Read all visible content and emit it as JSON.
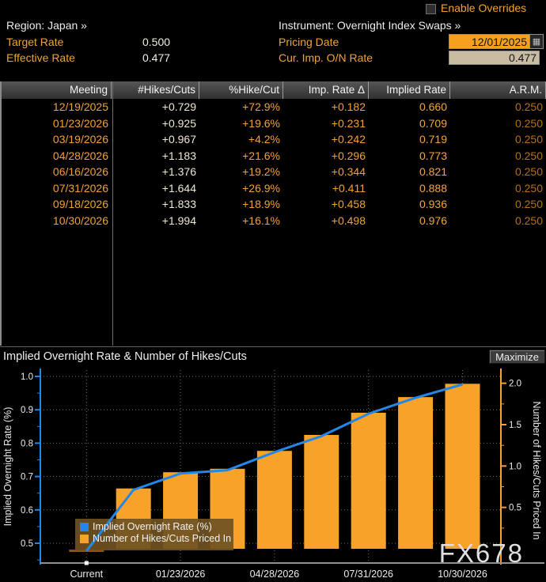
{
  "header": {
    "enable_overrides_label": "Enable Overrides",
    "region_label": "Region: Japan »",
    "instrument_label": "Instrument: Overnight Index Swaps »",
    "target_rate_label": "Target Rate",
    "target_rate_value": "0.500",
    "effective_rate_label": "Effective Rate",
    "effective_rate_value": "0.477",
    "pricing_date_label": "Pricing Date",
    "pricing_date_value": "12/01/2025",
    "calendar_icon": "▦",
    "cur_imp_on_rate_label": "Cur. Imp. O/N Rate",
    "cur_imp_on_rate_value": "0.477"
  },
  "table": {
    "columns": [
      "Meeting",
      "#Hikes/Cuts",
      "%Hike/Cut",
      "Imp. Rate Δ",
      "Implied Rate",
      "A.R.M."
    ],
    "rows": [
      [
        "12/19/2025",
        "+0.729",
        "+72.9%",
        "+0.182",
        "0.660",
        "0.250"
      ],
      [
        "01/23/2026",
        "+0.925",
        "+19.6%",
        "+0.231",
        "0.709",
        "0.250"
      ],
      [
        "03/19/2026",
        "+0.967",
        "+4.2%",
        "+0.242",
        "0.719",
        "0.250"
      ],
      [
        "04/28/2026",
        "+1.183",
        "+21.6%",
        "+0.296",
        "0.773",
        "0.250"
      ],
      [
        "06/16/2026",
        "+1.376",
        "+19.2%",
        "+0.344",
        "0.821",
        "0.250"
      ],
      [
        "07/31/2026",
        "+1.644",
        "+26.9%",
        "+0.411",
        "0.888",
        "0.250"
      ],
      [
        "09/18/2026",
        "+1.833",
        "+18.9%",
        "+0.458",
        "0.936",
        "0.250"
      ],
      [
        "10/30/2026",
        "+1.994",
        "+16.1%",
        "+0.498",
        "0.976",
        "0.250"
      ]
    ]
  },
  "chart": {
    "title": "Implied Overnight Rate & Number of Hikes/Cuts",
    "maximize_label": "Maximize",
    "watermark": "FX678"
  },
  "chart_data": {
    "type": "bar+line",
    "title": "Implied Overnight Rate & Number of Hikes/Cuts",
    "categories": [
      "Current",
      "12/19/2025",
      "01/23/2026",
      "03/19/2026",
      "04/28/2026",
      "06/16/2026",
      "07/31/2026",
      "09/18/2026",
      "10/30/2026"
    ],
    "x_tick_labels": [
      "Current",
      "01/23/2026",
      "04/28/2026",
      "07/31/2026",
      "10/30/2026"
    ],
    "x_tick_slots": [
      0,
      2,
      4,
      6,
      8
    ],
    "series": [
      {
        "name": "Implied Overnight Rate (%)",
        "type": "line",
        "axis": "left",
        "color": "#2387E8",
        "values": [
          0.477,
          0.66,
          0.709,
          0.719,
          0.773,
          0.821,
          0.888,
          0.936,
          0.976
        ]
      },
      {
        "name": "Number of Hikes/Cuts Priced In",
        "type": "bar",
        "axis": "right",
        "color": "#F7A228",
        "values": [
          0,
          0.729,
          0.925,
          0.967,
          1.183,
          1.376,
          1.644,
          1.833,
          1.994
        ]
      }
    ],
    "left_axis": {
      "label": "Implied Overnight Rate (%)",
      "ticks": [
        0.5,
        0.6,
        0.7,
        0.8,
        0.9,
        1.0
      ],
      "minor_step": 0.05,
      "color": "#2387E8"
    },
    "right_axis": {
      "label": "Number of Hikes/Cuts Priced In",
      "ticks": [
        0.5,
        1.0,
        1.5,
        2.0
      ],
      "minor_step": 0.25,
      "color": "#F7A228"
    },
    "legend": [
      "Implied Overnight Rate (%)",
      "Number of Hikes/Cuts Priced In"
    ],
    "legend_colors": [
      "#2387E8",
      "#F7A228"
    ],
    "current_marker_color": "#8A5410",
    "grid": "dotted",
    "watermark": "FX678"
  },
  "colors": {
    "accent_orange": "#F2A431",
    "bar_orange": "#F7A228",
    "line_blue": "#2387E8",
    "arm_dim_orange": "#B57117",
    "panel_border": "#8a8a8a",
    "pricing_box_bg": "#F5A11F",
    "readonly_box_bg": "#C9BCA3"
  }
}
